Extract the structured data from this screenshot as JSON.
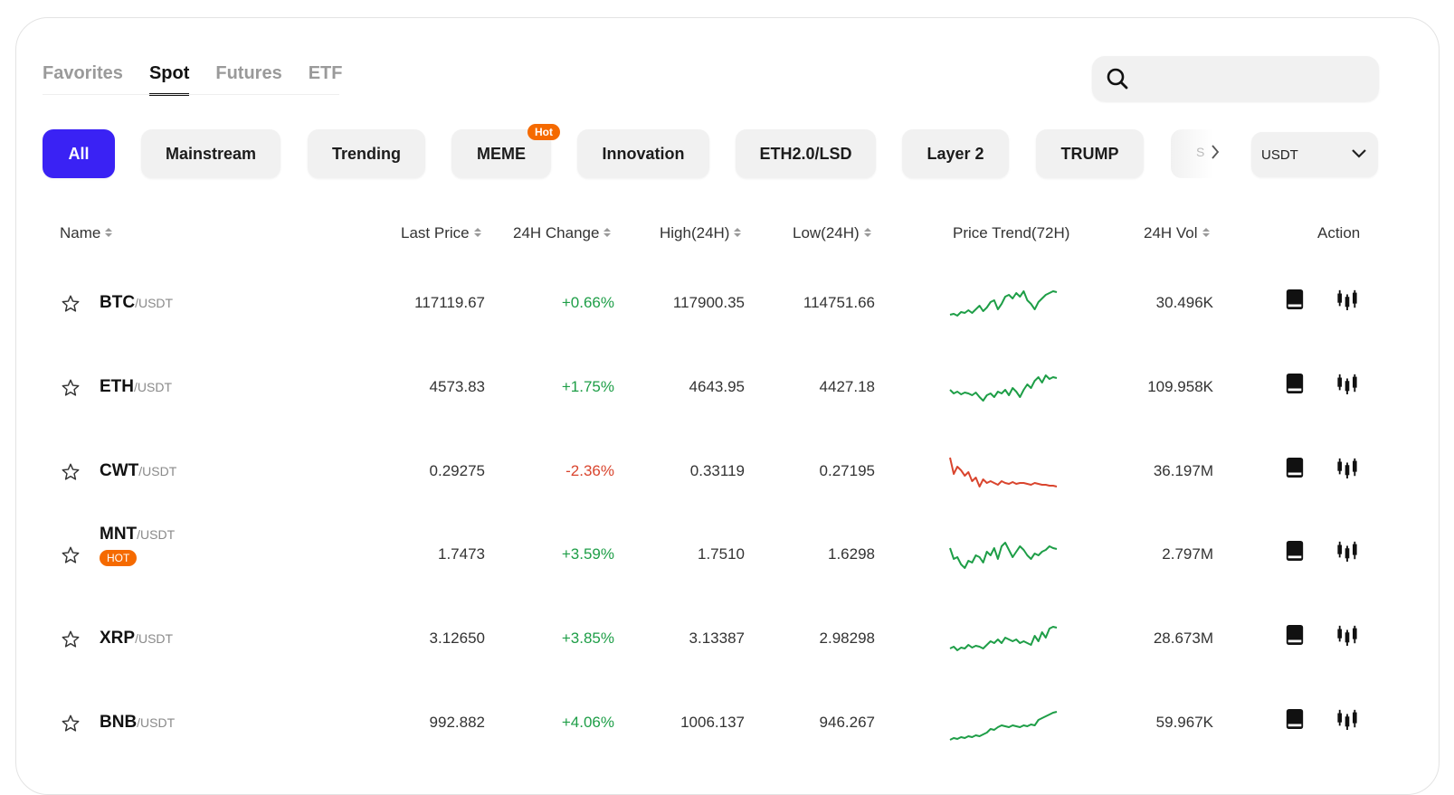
{
  "tabs": [
    {
      "label": "Favorites"
    },
    {
      "label": "Spot"
    },
    {
      "label": "Futures"
    },
    {
      "label": "ETF"
    }
  ],
  "active_tab": "Spot",
  "search": {
    "placeholder": "",
    "icon": "search-icon"
  },
  "categories": [
    {
      "label": "All",
      "active": true
    },
    {
      "label": "Mainstream"
    },
    {
      "label": "Trending"
    },
    {
      "label": "MEME",
      "tag": "Hot"
    },
    {
      "label": "Innovation"
    },
    {
      "label": "ETH2.0/LSD"
    },
    {
      "label": "Layer 2"
    },
    {
      "label": "TRUMP"
    },
    {
      "label": "S"
    }
  ],
  "quote_select": {
    "value": "USDT"
  },
  "columns": {
    "name": "Name",
    "last_price": "Last Price",
    "change": "24H Change",
    "high": "High(24H)",
    "low": "Low(24H)",
    "trend": "Price Trend(72H)",
    "vol": "24H Vol",
    "action": "Action"
  },
  "colors": {
    "accent": "#3a22f4",
    "up": "#1e9e47",
    "down": "#d9452e",
    "hot": "#f56a00"
  },
  "rows": [
    {
      "base": "BTC",
      "quote": "/USDT",
      "last": "117119.67",
      "change": "+0.66%",
      "high": "117900.35",
      "low": "114751.66",
      "vol": "30.496K",
      "dir": "up",
      "trend": [
        30,
        29,
        31,
        27,
        28,
        25,
        28,
        24,
        20,
        26,
        22,
        16,
        14,
        24,
        18,
        10,
        8,
        12,
        6,
        10,
        4,
        14,
        18,
        24,
        16,
        12,
        8,
        6,
        4,
        5
      ]
    },
    {
      "base": "ETH",
      "quote": "/USDT",
      "last": "4573.83",
      "change": "+1.75%",
      "high": "4643.95",
      "low": "4427.18",
      "vol": "109.958K",
      "dir": "up",
      "trend": [
        20,
        24,
        22,
        25,
        23,
        24,
        26,
        23,
        28,
        32,
        26,
        24,
        28,
        22,
        24,
        20,
        26,
        18,
        22,
        28,
        20,
        14,
        18,
        10,
        6,
        12,
        4,
        8,
        6,
        7
      ]
    },
    {
      "base": "CWT",
      "quote": "/USDT",
      "last": "0.29275",
      "change": "-2.36%",
      "high": "0.33119",
      "low": "0.27195",
      "vol": "36.197M",
      "dir": "down",
      "trend": [
        2,
        20,
        12,
        16,
        22,
        18,
        28,
        24,
        34,
        26,
        30,
        28,
        30,
        32,
        28,
        30,
        31,
        29,
        31,
        30,
        30,
        31,
        32,
        30,
        31,
        32,
        32,
        33,
        33,
        34
      ]
    },
    {
      "base": "MNT",
      "quote": "/USDT",
      "last": "1.7473",
      "change": "+3.59%",
      "high": "1.7510",
      "low": "1.6298",
      "vol": "2.797M",
      "dir": "up",
      "badge": "HOT",
      "trend": [
        10,
        22,
        20,
        28,
        32,
        24,
        26,
        18,
        20,
        26,
        14,
        18,
        10,
        22,
        8,
        4,
        12,
        20,
        14,
        8,
        12,
        18,
        22,
        16,
        18,
        14,
        12,
        8,
        10,
        11
      ]
    },
    {
      "base": "XRP",
      "quote": "/USDT",
      "last": "3.12650",
      "change": "+3.85%",
      "high": "3.13387",
      "low": "2.98298",
      "vol": "28.673M",
      "dir": "up",
      "trend": [
        28,
        26,
        30,
        27,
        28,
        24,
        27,
        25,
        26,
        28,
        24,
        20,
        22,
        18,
        22,
        16,
        18,
        20,
        18,
        22,
        20,
        22,
        24,
        14,
        20,
        10,
        16,
        6,
        4,
        5
      ]
    },
    {
      "base": "BNB",
      "quote": "/USDT",
      "last": "992.882",
      "change": "+4.06%",
      "high": "1006.137",
      "low": "946.267",
      "vol": "59.967K",
      "dir": "up",
      "trend": [
        36,
        34,
        35,
        33,
        34,
        32,
        33,
        31,
        32,
        30,
        28,
        24,
        25,
        22,
        20,
        21,
        22,
        20,
        21,
        22,
        20,
        21,
        19,
        20,
        14,
        12,
        10,
        8,
        6,
        5
      ]
    }
  ]
}
